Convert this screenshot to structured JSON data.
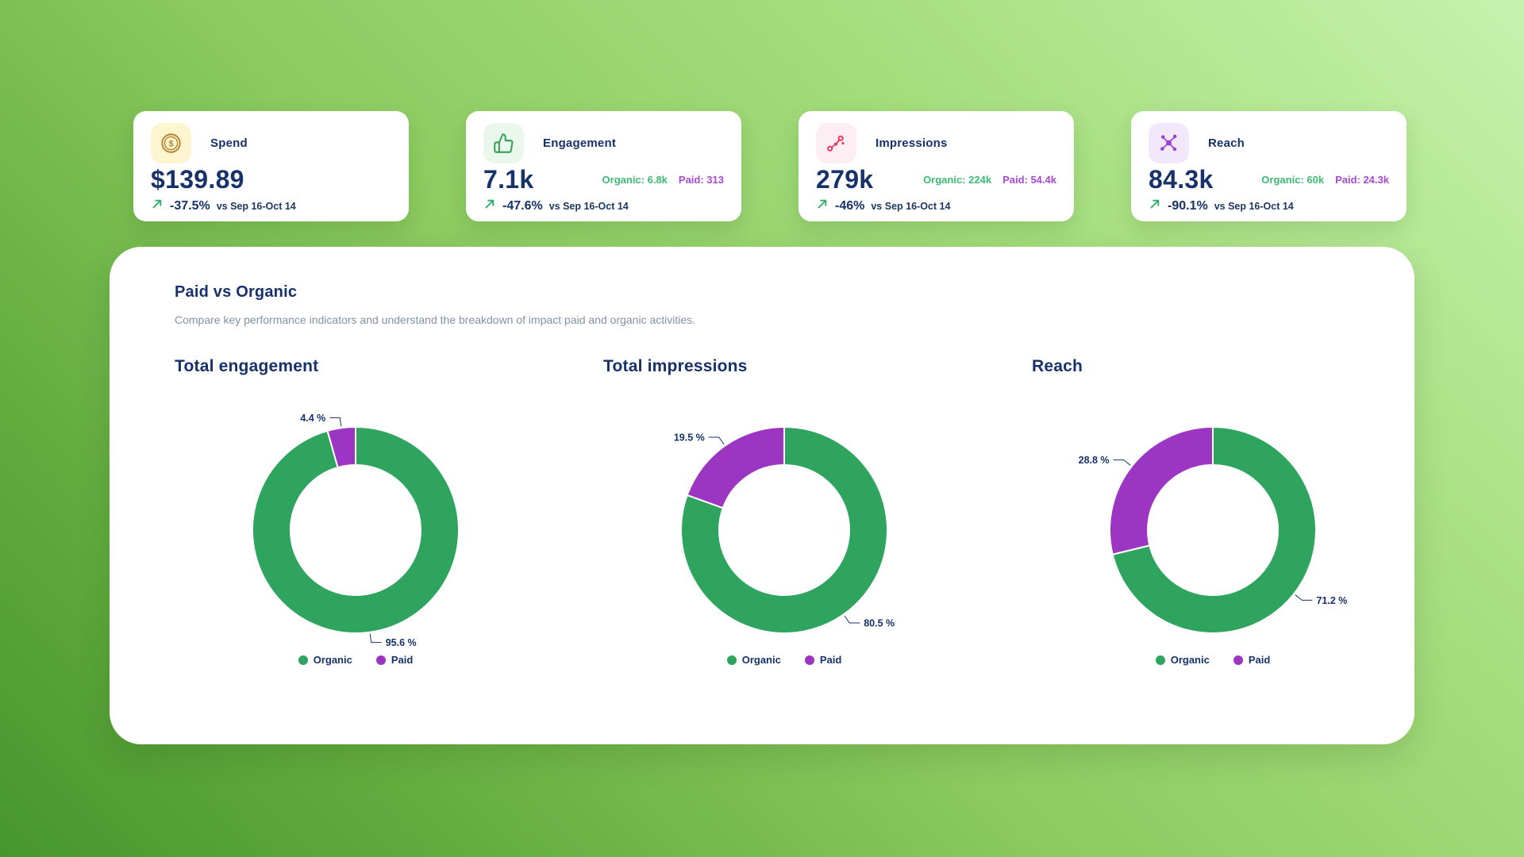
{
  "colors": {
    "navy": "#17316b",
    "organic_green": "#2ea45f",
    "paid_purple": "#9c36c2",
    "trend_arrow_green": "#2fae68",
    "kpi_organic_text": "#3dba74",
    "kpi_paid_text": "#a64ad4"
  },
  "kpi_cards": [
    {
      "label": "Spend",
      "icon": "dollar-coin",
      "icon_color": "#b5852f",
      "icon_bg": "#fdf5cf",
      "value": "$139.89",
      "trend_pct": "-37.5%",
      "trend_period": "vs Sep 16-Oct 14"
    },
    {
      "label": "Engagement",
      "icon": "thumbs-up",
      "icon_color": "#3da45a",
      "icon_bg": "#e9f7ec",
      "value": "7.1k",
      "organic": "Organic: 6.8k",
      "paid": "Paid: 313",
      "trend_pct": "-47.6%",
      "trend_period": "vs Sep 16-Oct 14"
    },
    {
      "label": "Impressions",
      "icon": "scatter-route",
      "icon_color": "#e8345a",
      "icon_bg": "#fdeef3",
      "value": "279k",
      "organic": "Organic: 224k",
      "paid": "Paid: 54.4k",
      "trend_pct": "-46%",
      "trend_period": "vs Sep 16-Oct 14"
    },
    {
      "label": "Reach",
      "icon": "network",
      "icon_color": "#9c3fd1",
      "icon_bg": "#f2e8fc",
      "value": "84.3k",
      "organic": "Organic: 60k",
      "paid": "Paid: 24.3k",
      "trend_pct": "-90.1%",
      "trend_period": "vs Sep 16-Oct 14"
    }
  ],
  "panel": {
    "title": "Paid vs Organic",
    "subtitle": "Compare key performance indicators and understand the breakdown of impact paid and organic activities."
  },
  "chart_data": [
    {
      "type": "pie",
      "subtype": "donut",
      "title": "Total engagement",
      "categories": [
        "Organic",
        "Paid"
      ],
      "values": [
        95.6,
        4.4
      ],
      "labels": [
        "95.6 %",
        "4.4 %"
      ],
      "unit": "%",
      "legend": [
        "Organic",
        "Paid"
      ],
      "legend_position": "bottom",
      "colors": {
        "Organic": "#2ea45f",
        "Paid": "#9c36c2"
      }
    },
    {
      "type": "pie",
      "subtype": "donut",
      "title": "Total impressions",
      "categories": [
        "Organic",
        "Paid"
      ],
      "values": [
        80.5,
        19.5
      ],
      "labels": [
        "80.5 %",
        "19.5 %"
      ],
      "unit": "%",
      "legend": [
        "Organic",
        "Paid"
      ],
      "legend_position": "bottom",
      "colors": {
        "Organic": "#2ea45f",
        "Paid": "#9c36c2"
      }
    },
    {
      "type": "pie",
      "subtype": "donut",
      "title": "Reach",
      "categories": [
        "Organic",
        "Paid"
      ],
      "values": [
        71.2,
        28.8
      ],
      "labels": [
        "71.2 %",
        "28.8 %"
      ],
      "unit": "%",
      "legend": [
        "Organic",
        "Paid"
      ],
      "legend_position": "bottom",
      "colors": {
        "Organic": "#2ea45f",
        "Paid": "#9c36c2"
      }
    }
  ]
}
